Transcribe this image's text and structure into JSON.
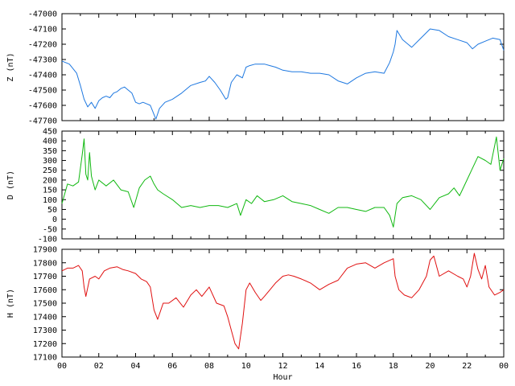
{
  "chart_data": [
    {
      "type": "line",
      "ylabel": "Z (nT)",
      "ylim": [
        -47700,
        -47000
      ],
      "yticks": [
        "-47000",
        "-47100",
        "-47200",
        "-47300",
        "-47400",
        "-47500",
        "-47600",
        "-47700"
      ],
      "ytick_values": [
        -47000,
        -47100,
        -47200,
        -47300,
        -47400,
        -47500,
        -47600,
        -47700
      ],
      "grid": false,
      "series": [
        {
          "color": "#1e78e0",
          "x": [
            0,
            0.4,
            0.8,
            1.0,
            1.2,
            1.4,
            1.6,
            1.8,
            2.0,
            2.2,
            2.4,
            2.6,
            2.8,
            3.0,
            3.2,
            3.4,
            3.6,
            3.8,
            4.0,
            4.2,
            4.4,
            4.6,
            4.8,
            5.0,
            5.1,
            5.3,
            5.6,
            6.0,
            6.5,
            7.0,
            7.5,
            7.8,
            8.0,
            8.3,
            8.6,
            8.9,
            9.0,
            9.2,
            9.5,
            9.8,
            10.0,
            10.2,
            10.5,
            11.0,
            11.3,
            11.6,
            12.0,
            12.5,
            13.0,
            13.5,
            14.0,
            14.5,
            15.0,
            15.5,
            16.0,
            16.5,
            17.0,
            17.5,
            17.8,
            18.0,
            18.1,
            18.2,
            18.5,
            19.0,
            19.5,
            20.0,
            20.5,
            21.0,
            21.5,
            22.0,
            22.3,
            22.6,
            23.0,
            23.4,
            23.8,
            24.0
          ],
          "values": [
            -47310,
            -47330,
            -47390,
            -47470,
            -47560,
            -47610,
            -47580,
            -47620,
            -47570,
            -47550,
            -47540,
            -47550,
            -47520,
            -47510,
            -47490,
            -47480,
            -47500,
            -47520,
            -47580,
            -47590,
            -47580,
            -47590,
            -47600,
            -47660,
            -47690,
            -47620,
            -47580,
            -47560,
            -47520,
            -47470,
            -47450,
            -47440,
            -47410,
            -47450,
            -47500,
            -47560,
            -47550,
            -47450,
            -47400,
            -47420,
            -47350,
            -47340,
            -47330,
            -47330,
            -47340,
            -47350,
            -47370,
            -47380,
            -47380,
            -47390,
            -47390,
            -47400,
            -47440,
            -47460,
            -47420,
            -47390,
            -47380,
            -47390,
            -47320,
            -47250,
            -47200,
            -47110,
            -47170,
            -47220,
            -47160,
            -47100,
            -47110,
            -47150,
            -47170,
            -47190,
            -47230,
            -47200,
            -47180,
            -47160,
            -47170,
            -47240
          ]
        }
      ]
    },
    {
      "type": "line",
      "ylabel": "D (nT)",
      "ylim": [
        -100,
        450
      ],
      "yticks": [
        "450",
        "400",
        "350",
        "300",
        "250",
        "200",
        "150",
        "100",
        "50",
        "0",
        "-50",
        "-100"
      ],
      "ytick_values": [
        450,
        400,
        350,
        300,
        250,
        200,
        150,
        100,
        50,
        0,
        -50,
        -100
      ],
      "grid": false,
      "series": [
        {
          "color": "#10b810",
          "x": [
            0,
            0.3,
            0.6,
            0.9,
            1.1,
            1.2,
            1.3,
            1.4,
            1.5,
            1.6,
            1.8,
            2.0,
            2.4,
            2.8,
            3.2,
            3.6,
            3.9,
            4.2,
            4.5,
            4.8,
            5.0,
            5.2,
            5.5,
            6.0,
            6.5,
            7.0,
            7.5,
            8.0,
            8.5,
            9.0,
            9.5,
            9.7,
            10.0,
            10.3,
            10.6,
            11.0,
            11.5,
            12.0,
            12.5,
            13.0,
            13.5,
            14.0,
            14.5,
            15.0,
            15.5,
            16.0,
            16.5,
            17.0,
            17.5,
            17.8,
            18.0,
            18.2,
            18.5,
            19.0,
            19.5,
            20.0,
            20.5,
            21.0,
            21.3,
            21.6,
            22.0,
            22.3,
            22.6,
            23.0,
            23.3,
            23.6,
            23.8,
            24.0
          ],
          "values": [
            80,
            180,
            170,
            190,
            330,
            410,
            230,
            200,
            340,
            220,
            150,
            200,
            170,
            200,
            150,
            140,
            60,
            160,
            200,
            220,
            180,
            150,
            130,
            100,
            60,
            70,
            60,
            70,
            70,
            60,
            80,
            20,
            100,
            80,
            120,
            90,
            100,
            120,
            90,
            80,
            70,
            50,
            30,
            60,
            60,
            50,
            40,
            60,
            60,
            20,
            -40,
            80,
            110,
            120,
            100,
            50,
            110,
            130,
            160,
            120,
            200,
            260,
            320,
            300,
            280,
            420,
            250,
            310
          ]
        }
      ]
    },
    {
      "type": "line",
      "ylabel": "H (nT)",
      "xlabel": "Hour",
      "ylim": [
        17100,
        17900
      ],
      "yticks": [
        "17900",
        "17800",
        "17700",
        "17600",
        "17500",
        "17400",
        "17300",
        "17200",
        "17100"
      ],
      "ytick_values": [
        17900,
        17800,
        17700,
        17600,
        17500,
        17400,
        17300,
        17200,
        17100
      ],
      "xticks": [
        "00",
        "02",
        "04",
        "06",
        "08",
        "10",
        "12",
        "14",
        "16",
        "18",
        "20",
        "22",
        "00"
      ],
      "xtick_values": [
        0,
        2,
        4,
        6,
        8,
        10,
        12,
        14,
        16,
        18,
        20,
        22,
        24
      ],
      "xlim": [
        0,
        24
      ],
      "grid": false,
      "series": [
        {
          "color": "#e01010",
          "x": [
            0,
            0.3,
            0.6,
            0.9,
            1.1,
            1.2,
            1.3,
            1.5,
            1.8,
            2.0,
            2.3,
            2.6,
            3.0,
            3.3,
            3.6,
            4.0,
            4.3,
            4.6,
            4.8,
            5.0,
            5.2,
            5.5,
            5.8,
            6.2,
            6.6,
            7.0,
            7.3,
            7.6,
            8.0,
            8.4,
            8.8,
            9.0,
            9.2,
            9.4,
            9.6,
            9.8,
            10.0,
            10.2,
            10.5,
            10.8,
            11.0,
            11.3,
            11.6,
            12.0,
            12.3,
            12.6,
            13.0,
            13.5,
            14.0,
            14.5,
            15.0,
            15.5,
            16.0,
            16.5,
            17.0,
            17.5,
            18.0,
            18.1,
            18.3,
            18.6,
            19.0,
            19.4,
            19.8,
            20.0,
            20.2,
            20.5,
            21.0,
            21.5,
            21.8,
            22.0,
            22.2,
            22.4,
            22.6,
            22.8,
            23.0,
            23.2,
            23.5,
            23.8,
            24.0
          ],
          "values": [
            17740,
            17760,
            17760,
            17780,
            17740,
            17620,
            17550,
            17680,
            17700,
            17680,
            17740,
            17760,
            17770,
            17750,
            17740,
            17720,
            17680,
            17660,
            17620,
            17450,
            17380,
            17500,
            17500,
            17540,
            17470,
            17560,
            17600,
            17550,
            17620,
            17500,
            17480,
            17400,
            17300,
            17200,
            17160,
            17350,
            17600,
            17650,
            17580,
            17520,
            17550,
            17600,
            17650,
            17700,
            17710,
            17700,
            17680,
            17650,
            17600,
            17640,
            17670,
            17760,
            17790,
            17800,
            17760,
            17800,
            17830,
            17700,
            17600,
            17560,
            17540,
            17600,
            17700,
            17820,
            17850,
            17700,
            17740,
            17700,
            17680,
            17620,
            17700,
            17870,
            17750,
            17680,
            17780,
            17620,
            17560,
            17580,
            17600
          ]
        }
      ]
    }
  ]
}
